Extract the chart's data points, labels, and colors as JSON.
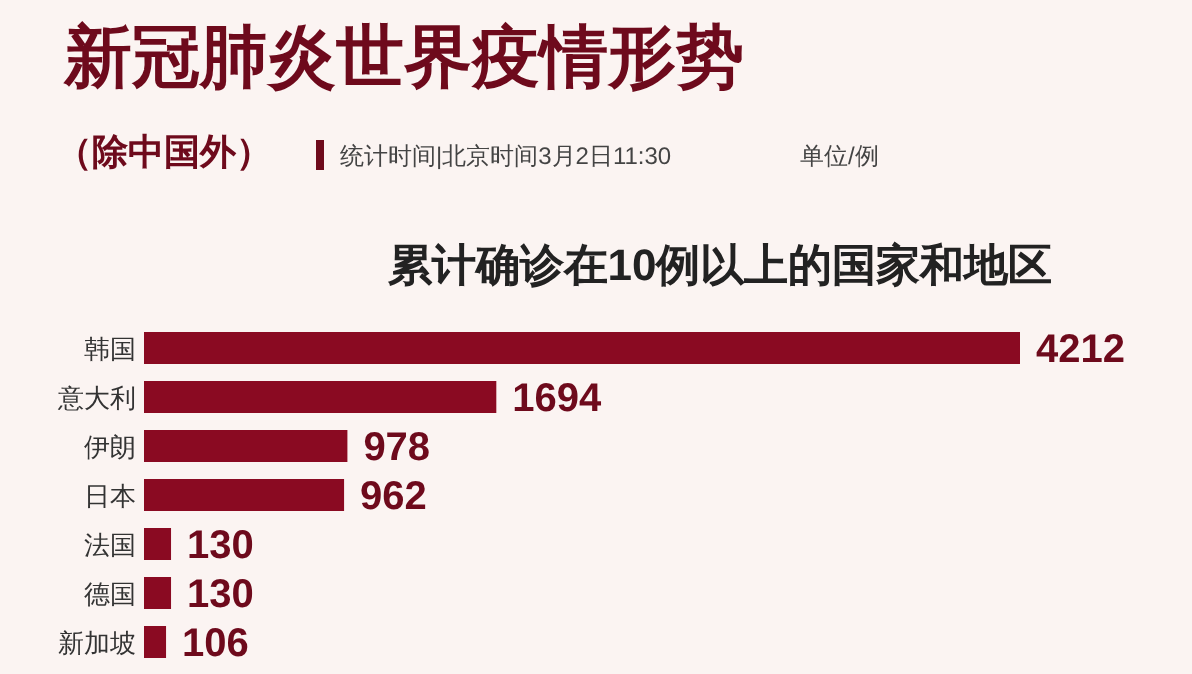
{
  "chart_data": {
    "type": "bar",
    "orientation": "horizontal",
    "title": "新冠肺炎世界疫情形势",
    "subtitle": "累计确诊在10例以上的国家和地区",
    "annotations": [
      "（除中国外）",
      "统计时间|北京时间3月2日11:30",
      "单位/例"
    ],
    "categories": [
      "韩国",
      "意大利",
      "伊朗",
      "日本",
      "法国",
      "德国",
      "新加坡"
    ],
    "values": [
      4212,
      1694,
      978,
      962,
      130,
      130,
      106
    ],
    "color": "#8a0a22",
    "data_labels": true
  }
}
